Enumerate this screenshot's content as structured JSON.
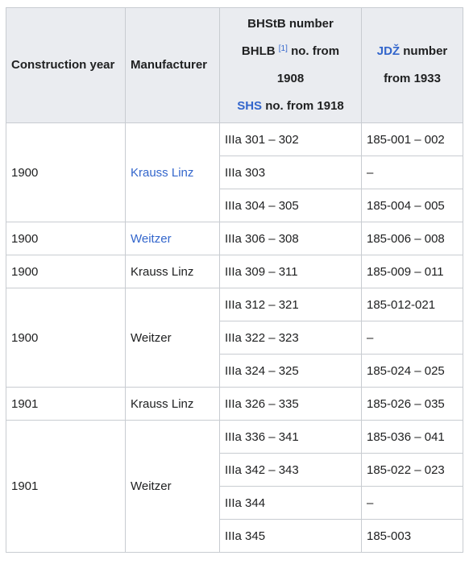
{
  "headers": {
    "year": "Construction year",
    "manufacturer": "Manufacturer",
    "bhstb": {
      "line1": "BHStB number",
      "bhlb": "BHLB",
      "ref": "[1]",
      "no_from_1908_a": "no. from",
      "no_from_1908_b": "1908",
      "shs": "SHS",
      "no_from_1918": "no. from 1918"
    },
    "jdz": {
      "link": "JDŽ",
      "number": "number",
      "from_1933": "from 1933"
    }
  },
  "groups": [
    {
      "year": "1900",
      "manufacturer": "Krauss Linz",
      "manufacturer_is_link": true,
      "rows": [
        {
          "bhstb": "IIIa 301 – 302",
          "jdz": "185-001 – 002"
        },
        {
          "bhstb": "IIIa 303",
          "jdz": "–"
        },
        {
          "bhstb": "IIIa 304 – 305",
          "jdz": "185-004 – 005"
        }
      ]
    },
    {
      "year": "1900",
      "manufacturer": "Weitzer",
      "manufacturer_is_link": true,
      "rows": [
        {
          "bhstb": "IIIa 306 – 308",
          "jdz": "185-006 – 008"
        }
      ]
    },
    {
      "year": "1900",
      "manufacturer": "Krauss Linz",
      "manufacturer_is_link": false,
      "rows": [
        {
          "bhstb": "IIIa 309 – 311",
          "jdz": "185-009 – 011"
        }
      ]
    },
    {
      "year": "1900",
      "manufacturer": "Weitzer",
      "manufacturer_is_link": false,
      "rows": [
        {
          "bhstb": "IIIa 312 – 321",
          "jdz": "185-012-021"
        },
        {
          "bhstb": "IIIa 322 – 323",
          "jdz": "–"
        },
        {
          "bhstb": "IIIa 324 – 325",
          "jdz": "185-024 – 025"
        }
      ]
    },
    {
      "year": "1901",
      "manufacturer": "Krauss Linz",
      "manufacturer_is_link": false,
      "rows": [
        {
          "bhstb": "IIIa 326 – 335",
          "jdz": "185-026 – 035"
        }
      ]
    },
    {
      "year": "1901",
      "manufacturer": "Weitzer",
      "manufacturer_is_link": false,
      "rows": [
        {
          "bhstb": "IIIa 336 – 341",
          "jdz": "185-036 – 041"
        },
        {
          "bhstb": "IIIa 342 – 343",
          "jdz": "185-022 – 023"
        },
        {
          "bhstb": "IIIa 344",
          "jdz": "–"
        },
        {
          "bhstb": "IIIa 345",
          "jdz": "185-003"
        }
      ]
    }
  ],
  "colors": {
    "header_bg": "#eaecf0",
    "border": "#c8ccd1",
    "link": "#3366cc",
    "text": "#202122"
  }
}
